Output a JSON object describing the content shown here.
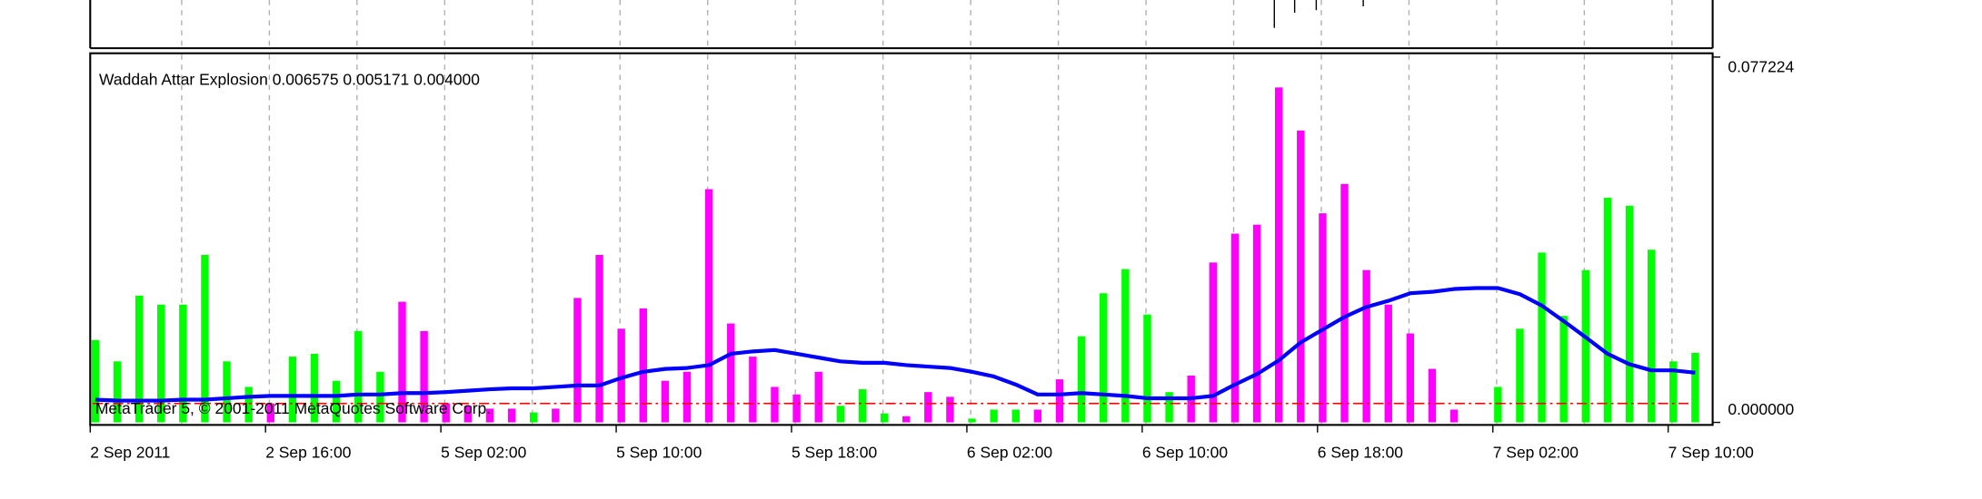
{
  "chart_data": {
    "type": "bar",
    "title": "Waddah Attar Explosion 0.006575 0.005171 0.004000",
    "watermark": "MetaTrader 5, © 2001-2011 MetaQuotes Software Corp.",
    "categories": [
      "2 Sep 2011",
      null,
      null,
      null,
      null,
      null,
      null,
      null,
      "2 Sep 16:00",
      null,
      null,
      null,
      null,
      null,
      null,
      null,
      "5 Sep 02:00",
      null,
      null,
      null,
      null,
      null,
      null,
      null,
      "5 Sep 10:00",
      null,
      null,
      null,
      null,
      null,
      null,
      null,
      "5 Sep 18:00",
      null,
      null,
      null,
      null,
      null,
      null,
      null,
      "6 Sep 02:00",
      null,
      null,
      null,
      null,
      null,
      null,
      null,
      "6 Sep 10:00",
      null,
      null,
      null,
      null,
      null,
      null,
      null,
      "6 Sep 18:00",
      null,
      null,
      null,
      null,
      null,
      null,
      null,
      "7 Sep 02:00",
      null,
      null,
      null,
      null,
      null,
      null,
      null,
      "7 Sep 10:00",
      null
    ],
    "values": [
      0.0174,
      0.0129,
      0.0268,
      0.0249,
      0.0249,
      0.0354,
      0.0129,
      0.0075,
      0.004,
      0.0139,
      0.0145,
      0.0088,
      0.0193,
      0.0107,
      0.0255,
      0.0193,
      0.004,
      0.0035,
      0.0029,
      0.0029,
      0.0021,
      0.0029,
      0.0263,
      0.0354,
      0.0198,
      0.0241,
      0.0088,
      0.0107,
      0.0493,
      0.0209,
      0.0139,
      0.0075,
      0.0059,
      0.0107,
      0.0035,
      0.007,
      0.0019,
      0.0013,
      0.0064,
      0.0054,
      0.0008,
      0.0027,
      0.0027,
      0.0027,
      0.0091,
      0.0182,
      0.0273,
      0.0324,
      0.0228,
      0.0064,
      0.0099,
      0.0338,
      0.0399,
      0.0418,
      0.0708,
      0.0617,
      0.0442,
      0.0504,
      0.0322,
      0.0249,
      0.0188,
      0.0113,
      0.0027,
      0,
      0.0075,
      0.0198,
      0.0359,
      0.0225,
      0.0322,
      0.0475,
      0.0458,
      0.0365,
      0.0129,
      0.0147
    ],
    "colors": [
      "#00ff00",
      "#00ff00",
      "#00ff00",
      "#00ff00",
      "#00ff00",
      "#00ff00",
      "#00ff00",
      "#00ff00",
      "#ff00ff",
      "#00ff00",
      "#00ff00",
      "#00ff00",
      "#00ff00",
      "#00ff00",
      "#ff00ff",
      "#ff00ff",
      "#ff00ff",
      "#ff00ff",
      "#ff00ff",
      "#ff00ff",
      "#00ff00",
      "#ff00ff",
      "#ff00ff",
      "#ff00ff",
      "#ff00ff",
      "#ff00ff",
      "#ff00ff",
      "#ff00ff",
      "#ff00ff",
      "#ff00ff",
      "#ff00ff",
      "#ff00ff",
      "#ff00ff",
      "#ff00ff",
      "#00ff00",
      "#00ff00",
      "#00ff00",
      "#ff00ff",
      "#ff00ff",
      "#ff00ff",
      "#00ff00",
      "#00ff00",
      "#00ff00",
      "#ff00ff",
      "#ff00ff",
      "#00ff00",
      "#00ff00",
      "#00ff00",
      "#00ff00",
      "#00ff00",
      "#ff00ff",
      "#ff00ff",
      "#ff00ff",
      "#ff00ff",
      "#ff00ff",
      "#ff00ff",
      "#ff00ff",
      "#ff00ff",
      "#ff00ff",
      "#ff00ff",
      "#ff00ff",
      "#ff00ff",
      "#ff00ff",
      "#00ff00",
      "#00ff00",
      "#00ff00",
      "#00ff00",
      "#00ff00",
      "#00ff00",
      "#00ff00",
      "#00ff00",
      "#00ff00",
      "#00ff00",
      "#00ff00"
    ],
    "explosion_line": {
      "color": "#0000ff",
      "values": [
        0.0048,
        0.0046,
        0.0046,
        0.0046,
        0.0048,
        0.0048,
        0.0051,
        0.0054,
        0.0056,
        0.0056,
        0.0056,
        0.0056,
        0.0059,
        0.0059,
        0.0062,
        0.0062,
        0.0064,
        0.0067,
        0.007,
        0.0072,
        0.0072,
        0.0075,
        0.0078,
        0.0078,
        0.0094,
        0.0107,
        0.0113,
        0.0115,
        0.0121,
        0.0145,
        0.015,
        0.0153,
        0.0145,
        0.0137,
        0.0129,
        0.0126,
        0.0126,
        0.0121,
        0.0118,
        0.0115,
        0.0107,
        0.0097,
        0.008,
        0.0059,
        0.0059,
        0.0062,
        0.0059,
        0.0056,
        0.0051,
        0.0051,
        0.0051,
        0.0056,
        0.008,
        0.0102,
        0.0131,
        0.0169,
        0.0196,
        0.0223,
        0.0244,
        0.0257,
        0.0273,
        0.0276,
        0.0282,
        0.0284,
        0.0284,
        0.0271,
        0.0247,
        0.0214,
        0.018,
        0.0145,
        0.0123,
        0.011,
        0.011,
        0.0105
      ]
    },
    "dead_zone": {
      "value": 0.004,
      "color": "#ff0000"
    },
    "ylim": [
      0,
      0.077224
    ],
    "yticks": [
      0.077224,
      {
        "value": 0,
        "label": "0.000000"
      }
    ],
    "grid": true
  }
}
